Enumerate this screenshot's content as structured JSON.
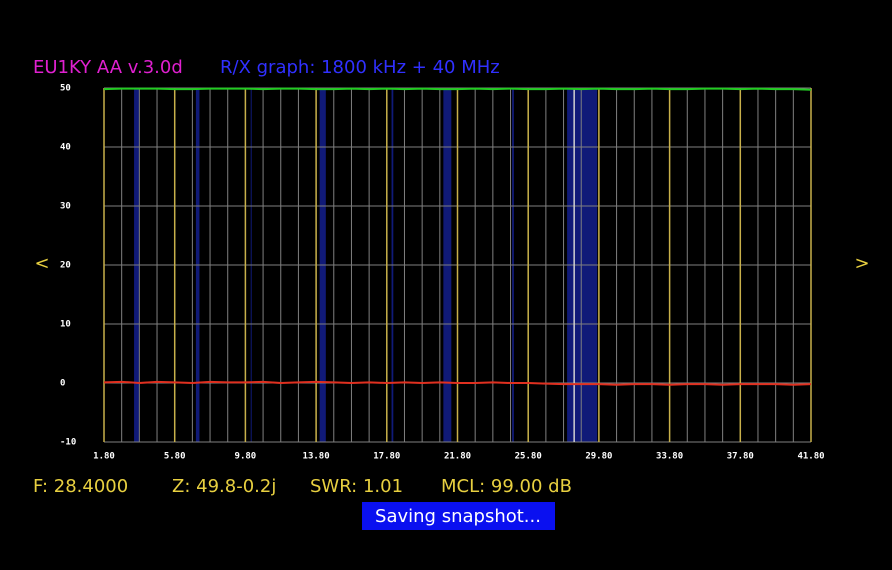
{
  "chart_data": {
    "type": "line",
    "title": "EU1KY AA v.3.0d",
    "subtitle": "R/X graph: 1800 kHz + 40 MHz",
    "x": [
      1.8,
      2.8,
      3.8,
      4.8,
      5.8,
      6.8,
      7.8,
      8.8,
      9.8,
      10.8,
      11.8,
      12.8,
      13.8,
      14.8,
      15.8,
      16.8,
      17.8,
      18.8,
      19.8,
      20.8,
      21.8,
      22.8,
      23.8,
      24.8,
      25.8,
      26.8,
      27.8,
      28.8,
      29.8,
      30.8,
      31.8,
      32.8,
      33.8,
      34.8,
      35.8,
      36.8,
      37.8,
      38.8,
      39.8,
      40.8,
      41.8
    ],
    "series": [
      {
        "color": "#22cc22",
        "values": [
          49.8,
          49.9,
          49.9,
          49.9,
          49.8,
          49.8,
          49.9,
          49.9,
          49.9,
          49.8,
          49.9,
          49.9,
          49.8,
          49.8,
          49.9,
          49.8,
          49.9,
          49.8,
          49.9,
          49.8,
          49.8,
          49.9,
          49.8,
          49.9,
          49.8,
          49.8,
          49.9,
          49.8,
          49.9,
          49.8,
          49.8,
          49.9,
          49.8,
          49.8,
          49.9,
          49.9,
          49.8,
          49.9,
          49.8,
          49.8,
          49.7
        ]
      },
      {
        "color": "#e03020",
        "values": [
          0.1,
          0.2,
          0.0,
          0.2,
          0.1,
          0.0,
          0.2,
          0.1,
          0.1,
          0.2,
          0.0,
          0.1,
          0.2,
          0.1,
          0.0,
          0.1,
          0.0,
          0.1,
          0.0,
          0.1,
          0.0,
          0.0,
          0.1,
          0.0,
          0.0,
          -0.1,
          -0.2,
          -0.2,
          -0.2,
          -0.3,
          -0.2,
          -0.2,
          -0.3,
          -0.2,
          -0.2,
          -0.3,
          -0.2,
          -0.2,
          -0.2,
          -0.3,
          -0.2
        ]
      }
    ],
    "xlim": [
      1.8,
      41.8
    ],
    "ylim": [
      -10,
      50
    ],
    "xticks": [
      {
        "value": 1.8,
        "label": "1.80"
      },
      {
        "value": 5.8,
        "label": "5.80"
      },
      {
        "value": 9.8,
        "label": "9.80"
      },
      {
        "value": 13.8,
        "label": "13.80"
      },
      {
        "value": 17.8,
        "label": "17.80"
      },
      {
        "value": 21.8,
        "label": "21.80"
      },
      {
        "value": 25.8,
        "label": "25.80"
      },
      {
        "value": 29.8,
        "label": "29.80"
      },
      {
        "value": 33.8,
        "label": "33.80"
      },
      {
        "value": 37.8,
        "label": "37.80"
      },
      {
        "value": 41.8,
        "label": "41.80"
      }
    ],
    "yticks": [
      -10,
      0,
      10,
      20,
      30,
      40,
      50
    ],
    "x_grid": [
      1.8,
      2.8,
      3.8,
      4.8,
      5.8,
      6.8,
      7.8,
      8.8,
      9.8,
      10.8,
      11.8,
      12.8,
      13.8,
      14.8,
      15.8,
      16.8,
      17.8,
      18.8,
      19.8,
      20.8,
      21.8,
      22.8,
      23.8,
      24.8,
      25.8,
      26.8,
      27.8,
      28.8,
      29.8,
      30.8,
      31.8,
      32.8,
      33.8,
      34.8,
      35.8,
      36.8,
      37.8,
      38.8,
      39.8,
      40.8,
      41.8
    ],
    "grid": true,
    "bands": [
      [
        3.5,
        3.8
      ],
      [
        7.0,
        7.2
      ],
      [
        10.1,
        10.15
      ],
      [
        14.0,
        14.35
      ],
      [
        18.068,
        18.168
      ],
      [
        21.0,
        21.45
      ],
      [
        24.89,
        24.99
      ],
      [
        28.0,
        29.7
      ]
    ],
    "cursor": 28.4,
    "nav": [
      "<",
      ">"
    ],
    "status": [
      "F: 28.4000",
      "Z: 49.8-0.2j",
      "SWR: 1.01",
      "MCL: 99.00 dB"
    ],
    "message": "Saving snapshot..."
  }
}
